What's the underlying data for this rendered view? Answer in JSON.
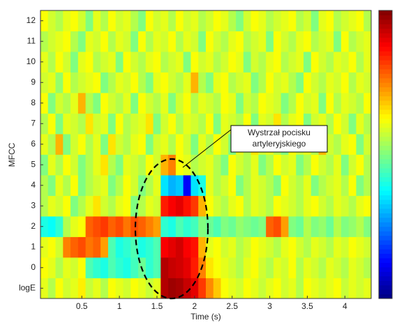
{
  "chart_data": {
    "type": "heatmap",
    "xlabel": "Time (s)",
    "ylabel": "MFCC",
    "colormap": "jet",
    "clim": [
      0,
      1
    ],
    "xlim": [
      -0.05,
      4.35
    ],
    "xticks": [
      0.5,
      1,
      1.5,
      2,
      2.5,
      3,
      3.5,
      4
    ],
    "x": [
      0.0,
      0.1,
      0.2,
      0.3,
      0.4,
      0.5,
      0.6,
      0.7,
      0.8,
      0.9,
      1.0,
      1.1,
      1.2,
      1.3,
      1.4,
      1.5,
      1.6,
      1.7,
      1.8,
      1.9,
      2.0,
      2.1,
      2.2,
      2.3,
      2.4,
      2.5,
      2.6,
      2.7,
      2.8,
      2.9,
      3.0,
      3.1,
      3.2,
      3.3,
      3.4,
      3.5,
      3.6,
      3.7,
      3.8,
      3.9,
      4.0,
      4.1,
      4.2,
      4.3
    ],
    "categories": [
      "logE",
      "0",
      "1",
      "2",
      "3",
      "4",
      "5",
      "6",
      "7",
      "8",
      "9",
      "10",
      "11",
      "12"
    ],
    "values": [
      [
        0.6,
        0.55,
        0.62,
        0.58,
        0.6,
        0.64,
        0.57,
        0.6,
        0.55,
        0.62,
        0.6,
        0.58,
        0.62,
        0.6,
        0.57,
        0.6,
        0.95,
        0.97,
        0.96,
        0.93,
        0.9,
        0.82,
        0.74,
        0.68,
        0.62,
        0.6,
        0.58,
        0.62,
        0.6,
        0.57,
        0.6,
        0.62,
        0.58,
        0.6,
        0.55,
        0.62,
        0.6,
        0.58,
        0.6,
        0.62,
        0.57,
        0.6,
        0.58,
        0.6
      ],
      [
        0.62,
        0.6,
        0.55,
        0.6,
        0.58,
        0.62,
        0.45,
        0.42,
        0.4,
        0.45,
        0.42,
        0.4,
        0.44,
        0.48,
        0.42,
        0.45,
        0.95,
        0.93,
        0.92,
        0.9,
        0.85,
        0.75,
        0.65,
        0.62,
        0.6,
        0.58,
        0.55,
        0.6,
        0.62,
        0.58,
        0.55,
        0.6,
        0.58,
        0.62,
        0.55,
        0.6,
        0.58,
        0.55,
        0.6,
        0.58,
        0.55,
        0.6,
        0.58,
        0.55
      ],
      [
        0.6,
        0.62,
        0.58,
        0.75,
        0.78,
        0.8,
        0.76,
        0.78,
        0.72,
        0.45,
        0.4,
        0.42,
        0.45,
        0.4,
        0.42,
        0.45,
        0.88,
        0.9,
        0.92,
        0.88,
        0.86,
        0.7,
        0.6,
        0.62,
        0.58,
        0.6,
        0.55,
        0.58,
        0.62,
        0.6,
        0.58,
        0.55,
        0.6,
        0.62,
        0.58,
        0.55,
        0.6,
        0.58,
        0.55,
        0.6,
        0.58,
        0.62,
        0.6,
        0.58
      ],
      [
        0.4,
        0.38,
        0.42,
        0.55,
        0.6,
        0.62,
        0.78,
        0.8,
        0.82,
        0.78,
        0.8,
        0.76,
        0.8,
        0.78,
        0.75,
        0.72,
        0.42,
        0.4,
        0.45,
        0.42,
        0.44,
        0.5,
        0.48,
        0.45,
        0.5,
        0.48,
        0.52,
        0.5,
        0.48,
        0.5,
        0.78,
        0.8,
        0.72,
        0.5,
        0.48,
        0.55,
        0.5,
        0.52,
        0.48,
        0.55,
        0.5,
        0.52,
        0.55,
        0.5
      ],
      [
        0.55,
        0.6,
        0.58,
        0.62,
        0.5,
        0.55,
        0.6,
        0.65,
        0.58,
        0.55,
        0.6,
        0.62,
        0.5,
        0.55,
        0.6,
        0.58,
        0.85,
        0.88,
        0.9,
        0.86,
        0.82,
        0.7,
        0.62,
        0.58,
        0.55,
        0.6,
        0.62,
        0.55,
        0.6,
        0.58,
        0.55,
        0.62,
        0.6,
        0.58,
        0.55,
        0.6,
        0.62,
        0.58,
        0.55,
        0.6,
        0.58,
        0.55,
        0.6,
        0.62
      ],
      [
        0.55,
        0.5,
        0.6,
        0.55,
        0.62,
        0.5,
        0.55,
        0.58,
        0.6,
        0.5,
        0.55,
        0.62,
        0.58,
        0.5,
        0.55,
        0.6,
        0.35,
        0.3,
        0.32,
        0.12,
        0.35,
        0.4,
        0.6,
        0.55,
        0.58,
        0.62,
        0.5,
        0.55,
        0.6,
        0.58,
        0.55,
        0.5,
        0.62,
        0.58,
        0.55,
        0.6,
        0.5,
        0.55,
        0.58,
        0.6,
        0.55,
        0.62,
        0.5,
        0.55
      ],
      [
        0.5,
        0.6,
        0.55,
        0.62,
        0.58,
        0.5,
        0.55,
        0.6,
        0.65,
        0.55,
        0.5,
        0.6,
        0.58,
        0.55,
        0.62,
        0.58,
        0.7,
        0.75,
        0.62,
        0.6,
        0.55,
        0.58,
        0.6,
        0.55,
        0.5,
        0.62,
        0.58,
        0.55,
        0.6,
        0.5,
        0.55,
        0.62,
        0.58,
        0.6,
        0.5,
        0.55,
        0.62,
        0.58,
        0.55,
        0.6,
        0.5,
        0.58,
        0.62,
        0.55
      ],
      [
        0.6,
        0.55,
        0.7,
        0.5,
        0.58,
        0.62,
        0.55,
        0.6,
        0.5,
        0.65,
        0.58,
        0.55,
        0.6,
        0.62,
        0.5,
        0.58,
        0.6,
        0.55,
        0.62,
        0.58,
        0.5,
        0.6,
        0.55,
        0.62,
        0.58,
        0.5,
        0.6,
        0.55,
        0.65,
        0.58,
        0.6,
        0.55,
        0.5,
        0.62,
        0.58,
        0.6,
        0.55,
        0.7,
        0.58,
        0.55,
        0.6,
        0.62,
        0.5,
        0.58
      ],
      [
        0.55,
        0.62,
        0.5,
        0.6,
        0.58,
        0.55,
        0.65,
        0.58,
        0.6,
        0.5,
        0.62,
        0.55,
        0.58,
        0.6,
        0.65,
        0.5,
        0.58,
        0.62,
        0.55,
        0.6,
        0.58,
        0.55,
        0.62,
        0.5,
        0.6,
        0.58,
        0.55,
        0.62,
        0.5,
        0.6,
        0.58,
        0.65,
        0.55,
        0.6,
        0.62,
        0.5,
        0.58,
        0.6,
        0.55,
        0.62,
        0.58,
        0.5,
        0.6,
        0.55
      ],
      [
        0.62,
        0.5,
        0.58,
        0.55,
        0.6,
        0.7,
        0.55,
        0.5,
        0.62,
        0.58,
        0.55,
        0.6,
        0.5,
        0.62,
        0.58,
        0.55,
        0.6,
        0.5,
        0.58,
        0.62,
        0.55,
        0.6,
        0.58,
        0.55,
        0.62,
        0.6,
        0.5,
        0.58,
        0.55,
        0.62,
        0.6,
        0.58,
        0.5,
        0.55,
        0.62,
        0.58,
        0.6,
        0.5,
        0.62,
        0.55,
        0.6,
        0.58,
        0.55,
        0.62
      ],
      [
        0.58,
        0.6,
        0.52,
        0.62,
        0.55,
        0.58,
        0.6,
        0.62,
        0.5,
        0.55,
        0.6,
        0.58,
        0.62,
        0.55,
        0.5,
        0.6,
        0.62,
        0.58,
        0.55,
        0.6,
        0.7,
        0.55,
        0.5,
        0.6,
        0.62,
        0.55,
        0.58,
        0.6,
        0.5,
        0.55,
        0.62,
        0.58,
        0.6,
        0.55,
        0.5,
        0.62,
        0.58,
        0.55,
        0.6,
        0.58,
        0.62,
        0.55,
        0.6,
        0.58
      ],
      [
        0.6,
        0.55,
        0.62,
        0.58,
        0.5,
        0.6,
        0.62,
        0.55,
        0.58,
        0.6,
        0.5,
        0.62,
        0.58,
        0.55,
        0.6,
        0.62,
        0.55,
        0.58,
        0.6,
        0.5,
        0.62,
        0.58,
        0.6,
        0.55,
        0.58,
        0.62,
        0.6,
        0.5,
        0.58,
        0.55,
        0.6,
        0.62,
        0.55,
        0.58,
        0.6,
        0.5,
        0.62,
        0.58,
        0.55,
        0.6,
        0.58,
        0.62,
        0.55,
        0.6
      ],
      [
        0.55,
        0.58,
        0.6,
        0.62,
        0.55,
        0.5,
        0.6,
        0.58,
        0.62,
        0.55,
        0.6,
        0.58,
        0.5,
        0.62,
        0.55,
        0.6,
        0.58,
        0.62,
        0.55,
        0.6,
        0.58,
        0.5,
        0.62,
        0.58,
        0.55,
        0.6,
        0.62,
        0.55,
        0.58,
        0.6,
        0.5,
        0.62,
        0.58,
        0.55,
        0.6,
        0.62,
        0.55,
        0.58,
        0.6,
        0.5,
        0.62,
        0.55,
        0.58,
        0.6
      ],
      [
        0.62,
        0.58,
        0.55,
        0.6,
        0.62,
        0.58,
        0.5,
        0.6,
        0.55,
        0.62,
        0.58,
        0.6,
        0.55,
        0.5,
        0.62,
        0.58,
        0.6,
        0.55,
        0.62,
        0.58,
        0.6,
        0.55,
        0.58,
        0.62,
        0.6,
        0.55,
        0.5,
        0.58,
        0.62,
        0.6,
        0.55,
        0.58,
        0.6,
        0.62,
        0.55,
        0.58,
        0.5,
        0.6,
        0.62,
        0.55,
        0.58,
        0.6,
        0.62,
        0.55
      ]
    ],
    "annotation": [
      "Wystrzał pocisku",
      "artyleryjskiego"
    ]
  }
}
